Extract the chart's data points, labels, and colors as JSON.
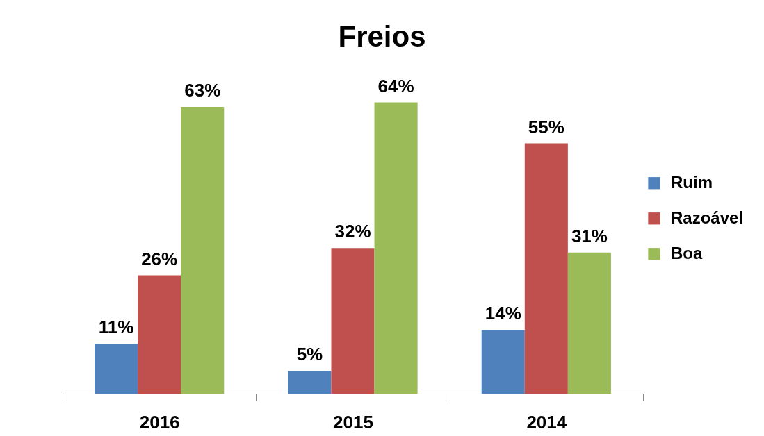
{
  "chart_data": {
    "type": "bar",
    "title": "Freios",
    "categories": [
      "2016",
      "2015",
      "2014"
    ],
    "series": [
      {
        "name": "Ruim",
        "color": "#4f81bd",
        "values": [
          11,
          5,
          14
        ],
        "value_labels": [
          "11%",
          "5%",
          "14%"
        ]
      },
      {
        "name": "Razoável",
        "color": "#c0504d",
        "values": [
          26,
          32,
          55
        ],
        "value_labels": [
          "26%",
          "32%",
          "55%"
        ]
      },
      {
        "name": "Boa",
        "color": "#9bbb59",
        "values": [
          63,
          64,
          31
        ],
        "value_labels": [
          "63%",
          "64%",
          "31%"
        ]
      }
    ],
    "legend": "right",
    "tick_labels": "x"
  }
}
